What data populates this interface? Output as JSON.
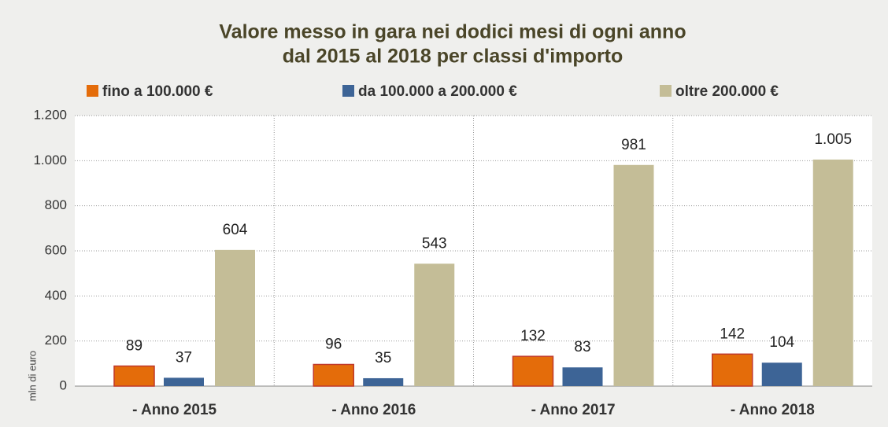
{
  "chart_data": {
    "type": "bar",
    "title": [
      "Valore messo in gara nei dodici mesi di ogni anno",
      "dal 2015 al 2018 per classi d'importo"
    ],
    "ylabel": "mln di euro",
    "categories": [
      "- Anno 2015",
      "- Anno 2016",
      "- Anno 2017",
      "- Anno 2018"
    ],
    "series": [
      {
        "name": "fino a 100.000 €",
        "color": "#e46c0a",
        "edge": "#c0392b",
        "values": [
          89,
          96,
          132,
          142
        ]
      },
      {
        "name": "da 100.000 a 200.000 €",
        "color": "#3d6496",
        "values": [
          37,
          35,
          83,
          104
        ]
      },
      {
        "name": "oltre 200.000 €",
        "color": "#c4bd97",
        "values": [
          604,
          543,
          981,
          1005
        ],
        "value_labels": [
          "604",
          "543",
          "981",
          "1.005"
        ]
      }
    ],
    "ylim": [
      0,
      1200
    ],
    "yticks": [
      0,
      200,
      400,
      600,
      800,
      {
        "value": 1000,
        "label": "1.000"
      },
      {
        "value": 1200,
        "label": "1.200"
      }
    ],
    "grid": true
  }
}
